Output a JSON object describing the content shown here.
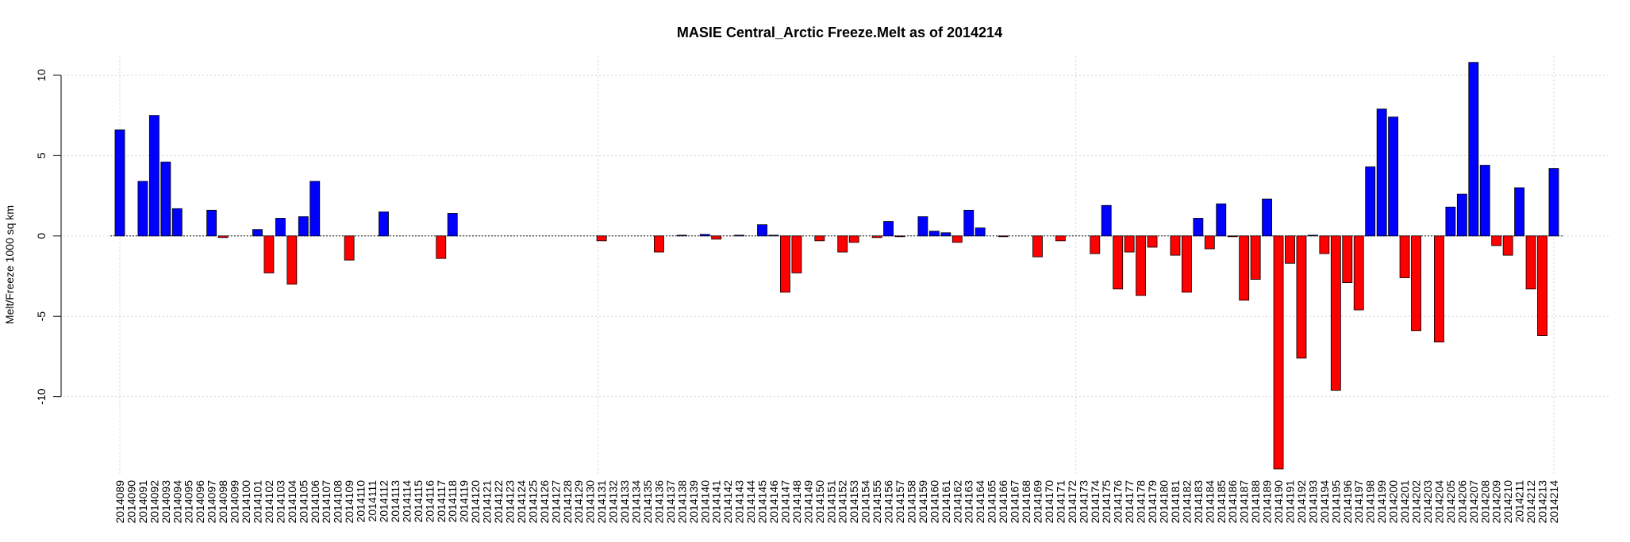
{
  "chart_data": {
    "type": "bar",
    "title": "MASIE Central_Arctic Freeze.Melt as of 2014214",
    "ylabel": "Melt/Freeze 1000 sq km",
    "categories": [
      "2014089",
      "2014090",
      "2014091",
      "2014092",
      "2014093",
      "2014094",
      "2014095",
      "2014096",
      "2014097",
      "2014098",
      "2014099",
      "2014100",
      "2014101",
      "2014102",
      "2014103",
      "2014104",
      "2014105",
      "2014106",
      "2014107",
      "2014108",
      "2014109",
      "2014110",
      "2014111",
      "2014112",
      "2014113",
      "2014114",
      "2014115",
      "2014116",
      "2014117",
      "2014118",
      "2014119",
      "2014120",
      "2014121",
      "2014122",
      "2014123",
      "2014124",
      "2014125",
      "2014126",
      "2014127",
      "2014128",
      "2014129",
      "2014130",
      "2014131",
      "2014132",
      "2014133",
      "2014134",
      "2014135",
      "2014136",
      "2014137",
      "2014138",
      "2014139",
      "2014140",
      "2014141",
      "2014142",
      "2014143",
      "2014144",
      "2014145",
      "2014146",
      "2014147",
      "2014148",
      "2014149",
      "2014150",
      "2014151",
      "2014152",
      "2014153",
      "2014154",
      "2014155",
      "2014156",
      "2014157",
      "2014158",
      "2014159",
      "2014160",
      "2014161",
      "2014162",
      "2014163",
      "2014164",
      "2014165",
      "2014166",
      "2014167",
      "2014168",
      "2014169",
      "2014170",
      "2014171",
      "2014172",
      "2014173",
      "2014174",
      "2014175",
      "2014176",
      "2014177",
      "2014178",
      "2014179",
      "2014180",
      "2014181",
      "2014182",
      "2014183",
      "2014184",
      "2014185",
      "2014186",
      "2014187",
      "2014188",
      "2014189",
      "2014190",
      "2014191",
      "2014192",
      "2014193",
      "2014194",
      "2014195",
      "2014196",
      "2014197",
      "2014198",
      "2014199",
      "2014200",
      "2014201",
      "2014202",
      "2014203",
      "2014204",
      "2014205",
      "2014206",
      "2014207",
      "2014208",
      "2014209",
      "2014210",
      "2014211",
      "2014212",
      "2014213",
      "2014214"
    ],
    "values": [
      6.6,
      0,
      3.4,
      7.5,
      4.6,
      1.7,
      0,
      0,
      1.6,
      -0.1,
      0,
      0,
      0.4,
      -2.3,
      1.1,
      -3.0,
      1.2,
      3.4,
      0,
      0,
      -1.5,
      0,
      0,
      1.5,
      0,
      0,
      0,
      0,
      -1.4,
      1.4,
      0,
      0,
      0,
      0,
      0,
      0,
      0,
      0,
      0,
      0,
      0,
      0,
      -0.3,
      0,
      0,
      0,
      0,
      -1.0,
      0,
      0.05,
      0,
      0.1,
      -0.2,
      0,
      0.05,
      0,
      0.7,
      0.05,
      -3.5,
      -2.3,
      0,
      -0.3,
      0,
      -1.0,
      -0.4,
      0,
      -0.1,
      0.9,
      -0.05,
      0,
      1.2,
      0.3,
      0.2,
      -0.4,
      1.6,
      0.5,
      0,
      -0.05,
      0,
      0,
      -1.3,
      0,
      -0.3,
      0,
      0,
      -1.1,
      1.9,
      -3.3,
      -1.0,
      -3.7,
      -0.7,
      0,
      -1.2,
      -3.5,
      1.1,
      -0.8,
      2.0,
      -0.05,
      -4.0,
      -2.7,
      2.3,
      -14.5,
      -1.7,
      -7.6,
      0.05,
      -1.1,
      -9.6,
      -2.9,
      -4.6,
      4.3,
      7.9,
      7.4,
      -2.6,
      -5.9,
      0,
      -6.6,
      1.8,
      2.6,
      10.8,
      4.4,
      -0.6,
      -1.2,
      3.0,
      -3.3,
      -6.2,
      4.2
    ],
    "color_positive": "#0000ff",
    "color_negative": "#ff0000",
    "ylim": [
      -14.8,
      11.2
    ],
    "yticks": [
      -10,
      -5,
      0,
      5,
      10
    ],
    "grid": true
  }
}
